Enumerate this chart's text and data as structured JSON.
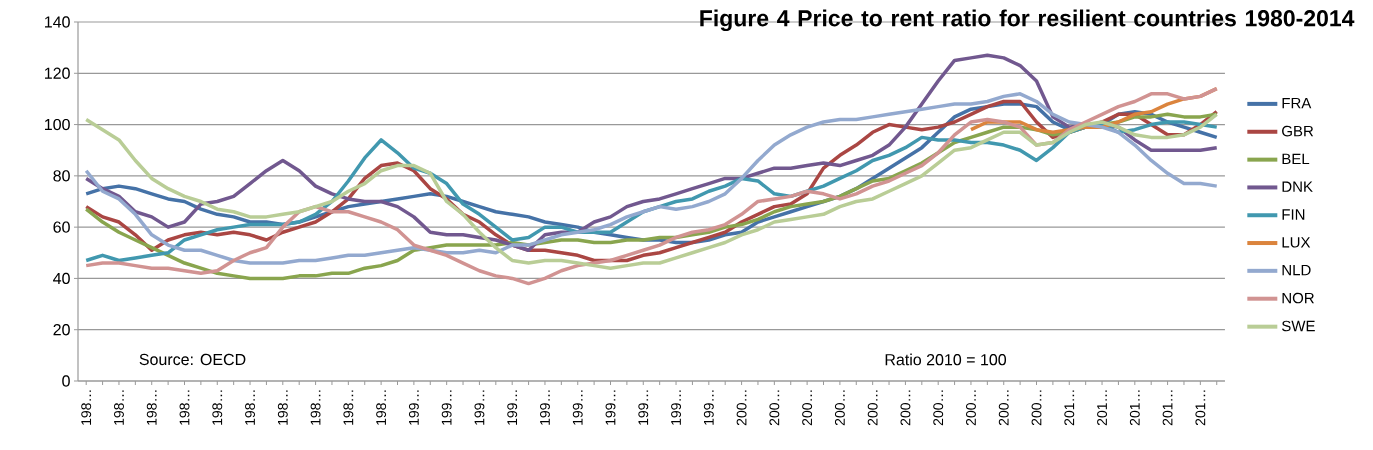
{
  "chart_data": {
    "type": "line",
    "title": "Figure 4 Price to rent ratio for resilient countries 1980-2014",
    "annotations": [
      "Source: OECD",
      "Ratio 2010 = 100"
    ],
    "categories": [
      "198…",
      null,
      "198…",
      null,
      "198…",
      null,
      "198…",
      null,
      "198…",
      null,
      "198…",
      null,
      "198…",
      null,
      "198…",
      null,
      "198…",
      null,
      "198…",
      null,
      "199…",
      null,
      "199…",
      null,
      "199…",
      null,
      "199…",
      null,
      "199…",
      null,
      "199…",
      null,
      "199…",
      null,
      "199…",
      null,
      "199…",
      null,
      "199…",
      null,
      "200…",
      null,
      "200…",
      null,
      "200…",
      null,
      "200…",
      null,
      "200…",
      null,
      "200…",
      null,
      "200…",
      null,
      "200…",
      null,
      "200…",
      null,
      "200…",
      null,
      "201…",
      null,
      "201…",
      null,
      "201…",
      null,
      "201…",
      null,
      "201…",
      null
    ],
    "series": [
      {
        "name": "FRA",
        "color": "#4572a7",
        "values": [
          73,
          75,
          76,
          75,
          73,
          71,
          70,
          67,
          65,
          64,
          62,
          62,
          61,
          62,
          64,
          66,
          68,
          69,
          70,
          71,
          72,
          73,
          72,
          70,
          68,
          66,
          65,
          64,
          62,
          61,
          60,
          58,
          57,
          56,
          55,
          55,
          54,
          54,
          55,
          57,
          58,
          62,
          64,
          66,
          68,
          70,
          72,
          75,
          79,
          83,
          87,
          91,
          97,
          103,
          106,
          107,
          108,
          108,
          107,
          101,
          98,
          99,
          100,
          104,
          105,
          104,
          101,
          99,
          97,
          95
        ]
      },
      {
        "name": "GBR",
        "color": "#aa4643",
        "values": [
          68,
          64,
          62,
          57,
          51,
          55,
          57,
          58,
          57,
          58,
          57,
          55,
          58,
          60,
          62,
          66,
          71,
          79,
          84,
          85,
          82,
          75,
          71,
          65,
          62,
          57,
          53,
          51,
          51,
          50,
          49,
          47,
          47,
          47,
          49,
          50,
          52,
          54,
          56,
          58,
          62,
          65,
          68,
          69,
          73,
          83,
          88,
          92,
          97,
          100,
          99,
          98,
          99,
          101,
          104,
          107,
          109,
          109,
          101,
          95,
          97,
          99,
          101,
          104,
          104,
          100,
          96,
          96,
          100,
          105
        ]
      },
      {
        "name": "BEL",
        "color": "#89a54e",
        "values": [
          67,
          62,
          58,
          55,
          52,
          49,
          46,
          44,
          42,
          41,
          40,
          40,
          40,
          41,
          41,
          42,
          42,
          44,
          45,
          47,
          51,
          52,
          53,
          53,
          53,
          53,
          54,
          53,
          54,
          55,
          55,
          54,
          54,
          55,
          55,
          56,
          56,
          57,
          58,
          60,
          61,
          63,
          66,
          68,
          69,
          70,
          72,
          75,
          78,
          79,
          82,
          85,
          89,
          93,
          95,
          97,
          99,
          99,
          98,
          96,
          97,
          99,
          100,
          101,
          103,
          103,
          104,
          103,
          103,
          104
        ]
      },
      {
        "name": "DNK",
        "color": "#71588f",
        "values": [
          79,
          75,
          72,
          66,
          64,
          60,
          62,
          69,
          70,
          72,
          77,
          82,
          86,
          82,
          76,
          73,
          71,
          70,
          70,
          68,
          64,
          58,
          57,
          57,
          56,
          55,
          53,
          51,
          57,
          58,
          58,
          62,
          64,
          68,
          70,
          71,
          73,
          75,
          77,
          79,
          79,
          81,
          83,
          83,
          84,
          85,
          84,
          86,
          88,
          92,
          99,
          108,
          117,
          125,
          126,
          127,
          126,
          123,
          117,
          103,
          99,
          100,
          100,
          99,
          94,
          90,
          90,
          90,
          90,
          91
        ]
      },
      {
        "name": "FIN",
        "color": "#4198af",
        "values": [
          47,
          49,
          47,
          48,
          49,
          50,
          55,
          57,
          59,
          60,
          61,
          61,
          61,
          62,
          65,
          70,
          78,
          87,
          94,
          89,
          83,
          81,
          77,
          69,
          65,
          60,
          55,
          56,
          60,
          60,
          58,
          58,
          58,
          62,
          66,
          68,
          70,
          71,
          74,
          76,
          79,
          78,
          73,
          72,
          74,
          76,
          79,
          82,
          86,
          88,
          91,
          95,
          94,
          94,
          93,
          93,
          92,
          90,
          86,
          91,
          97,
          99,
          100,
          97,
          98,
          100,
          101,
          101,
          100,
          99
        ]
      },
      {
        "name": "LUX",
        "color": "#db843d",
        "values": [
          null,
          null,
          null,
          null,
          null,
          null,
          null,
          null,
          null,
          null,
          null,
          null,
          null,
          null,
          null,
          null,
          null,
          null,
          null,
          null,
          null,
          null,
          null,
          null,
          null,
          null,
          null,
          null,
          null,
          null,
          null,
          null,
          null,
          null,
          null,
          null,
          null,
          null,
          null,
          null,
          null,
          null,
          null,
          null,
          null,
          null,
          null,
          null,
          null,
          null,
          null,
          null,
          null,
          null,
          98,
          101,
          101,
          101,
          98,
          97,
          98,
          99,
          99,
          101,
          104,
          105,
          108,
          110,
          111,
          114
        ]
      },
      {
        "name": "NLD",
        "color": "#93a9cf",
        "values": [
          82,
          74,
          71,
          65,
          57,
          53,
          51,
          51,
          49,
          47,
          46,
          46,
          46,
          47,
          47,
          48,
          49,
          49,
          50,
          51,
          52,
          51,
          50,
          50,
          51,
          50,
          53,
          53,
          55,
          57,
          58,
          59,
          61,
          64,
          66,
          68,
          67,
          68,
          70,
          73,
          79,
          86,
          92,
          96,
          99,
          101,
          102,
          102,
          103,
          104,
          105,
          106,
          107,
          108,
          108,
          109,
          111,
          112,
          109,
          104,
          101,
          100,
          99,
          97,
          92,
          86,
          81,
          77,
          77,
          76
        ]
      },
      {
        "name": "NOR",
        "color": "#d19392",
        "values": [
          45,
          46,
          46,
          45,
          44,
          44,
          43,
          42,
          43,
          47,
          50,
          52,
          60,
          66,
          68,
          66,
          66,
          64,
          62,
          59,
          53,
          51,
          49,
          46,
          43,
          41,
          40,
          38,
          40,
          43,
          45,
          46,
          47,
          49,
          51,
          53,
          56,
          58,
          59,
          61,
          65,
          70,
          71,
          72,
          74,
          73,
          71,
          73,
          76,
          78,
          81,
          84,
          89,
          96,
          101,
          102,
          101,
          99,
          92,
          93,
          98,
          101,
          104,
          107,
          109,
          112,
          112,
          110,
          111,
          114
        ]
      },
      {
        "name": "SWE",
        "color": "#b9cd96",
        "values": [
          102,
          98,
          94,
          86,
          79,
          75,
          72,
          70,
          67,
          66,
          64,
          64,
          65,
          66,
          68,
          70,
          74,
          77,
          82,
          84,
          84,
          81,
          70,
          65,
          58,
          52,
          47,
          46,
          47,
          47,
          46,
          45,
          44,
          45,
          46,
          46,
          48,
          50,
          52,
          54,
          57,
          59,
          62,
          63,
          64,
          65,
          68,
          70,
          71,
          74,
          77,
          80,
          85,
          90,
          91,
          94,
          97,
          97,
          92,
          93,
          97,
          100,
          101,
          99,
          96,
          95,
          95,
          96,
          99,
          104
        ]
      }
    ],
    "ylim": [
      0,
      140
    ],
    "yticks": [
      0,
      20,
      40,
      60,
      80,
      100,
      120,
      140
    ],
    "grid": "y",
    "legend": "right",
    "marker": "none",
    "line_style": "solid"
  }
}
